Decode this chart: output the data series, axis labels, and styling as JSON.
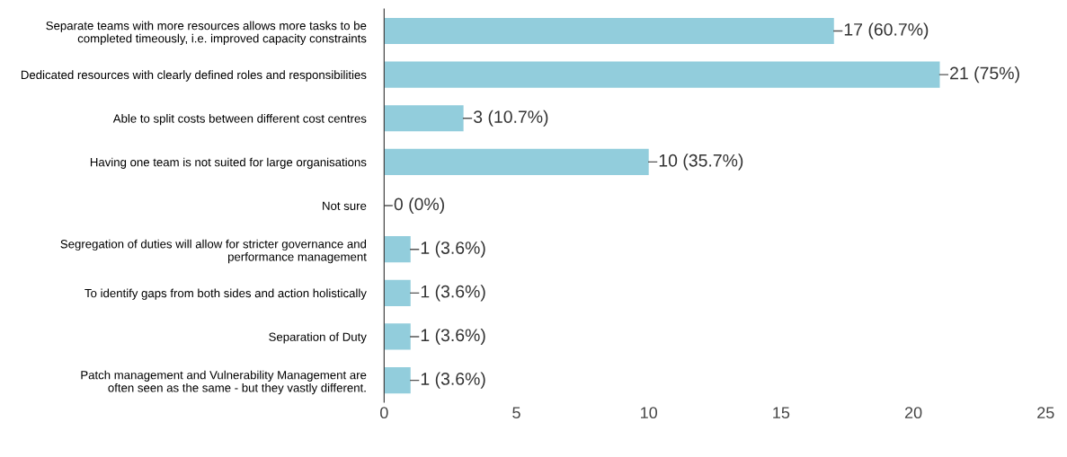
{
  "chart_data": {
    "type": "bar",
    "orientation": "horizontal",
    "categories": [
      "Separate teams with more resources allows more tasks to be\ncompleted timeously, i.e. improved capacity constraints",
      "Dedicated resources with clearly defined roles and responsibilities",
      "Able to split costs between different cost centres",
      "Having one team is not suited for large organisations",
      "Not sure",
      "Segregation of duties will allow for stricter governance and\nperformance management",
      "To identify gaps from both sides and action holistically",
      "Separation of Duty",
      "Patch management and Vulnerability Management are\noften seen as the same - but they vastly different."
    ],
    "values": [
      17,
      21,
      3,
      10,
      0,
      1,
      1,
      1,
      1
    ],
    "value_labels": [
      "17 (60.7%)",
      "21 (75%)",
      "3 (10.7%)",
      "10 (35.7%)",
      "0 (0%)",
      "1 (3.6%)",
      "1 (3.6%)",
      "1 (3.6%)",
      "1 (3.6%)"
    ],
    "color": "#92cddc",
    "xlim": [
      0,
      25
    ],
    "xticks": [
      0,
      5,
      10,
      15,
      20,
      25
    ],
    "grid": false
  }
}
